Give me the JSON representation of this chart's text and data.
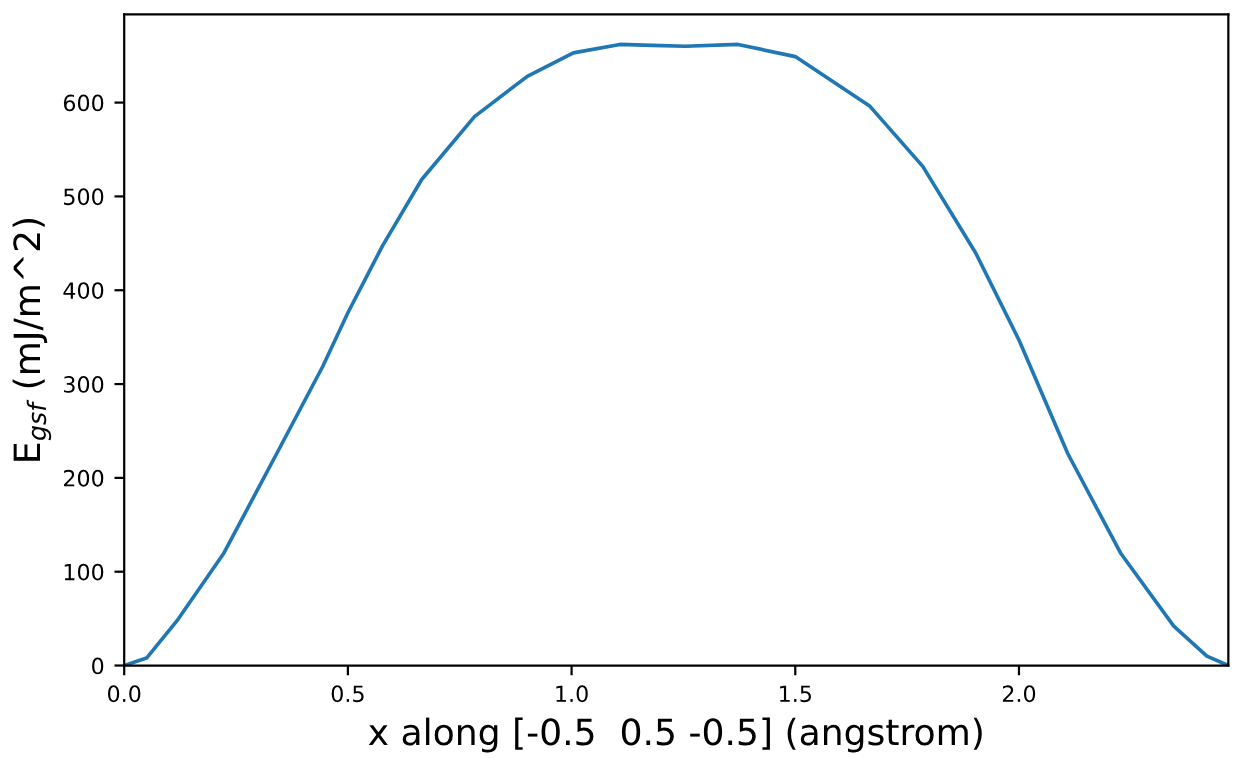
{
  "chart_data": {
    "type": "line",
    "xlabel": "x along [-0.5  0.5 -0.5] (angstrom)",
    "ylabel": "E$_{gsf}$ (mJ/m^2)",
    "series": [
      {
        "color": "#1f77b4",
        "x": [
          0,
          0.05,
          0.12,
          0.223,
          0.341,
          0.444,
          0.5,
          0.577,
          0.665,
          0.783,
          0.901,
          1.004,
          1.108,
          1.18,
          1.254,
          1.372,
          1.5,
          1.667,
          1.785,
          1.903,
          2.0,
          2.109,
          2.227,
          2.346,
          2.42,
          2.468
        ],
        "values": [
          0,
          8,
          49,
          120,
          226,
          319,
          376,
          447,
          518,
          585,
          628,
          653,
          662,
          661,
          660,
          662,
          649,
          596,
          532,
          440,
          347,
          226,
          120,
          42,
          10,
          0
        ]
      }
    ],
    "xlim": [
      0,
      2.468
    ],
    "ylim": [
      0,
      694
    ],
    "xticks": [
      {
        "value": 0,
        "label": "0.0"
      },
      0.5,
      {
        "value": 1,
        "label": "1.0"
      },
      1.5,
      {
        "value": 2,
        "label": "2.0"
      }
    ],
    "yticks": [
      0,
      100,
      200,
      300,
      400,
      500,
      600
    ],
    "grid": false,
    "legend": false,
    "marker": "none",
    "line_style": "solid"
  }
}
